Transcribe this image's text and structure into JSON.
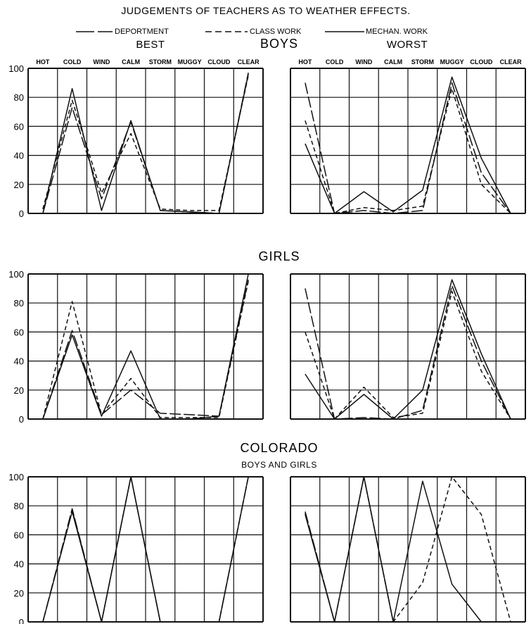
{
  "figure": {
    "title": "JUDGEMENTS OF TEACHERS AS TO WEATHER EFFECTS.",
    "legend": [
      {
        "label": "DEPORTMENT",
        "style": "long-dash"
      },
      {
        "label": "CLASS WORK",
        "style": "short-dash"
      },
      {
        "label": "MECHAN. WORK",
        "style": "solid"
      }
    ],
    "best_label": "BEST",
    "worst_label": "WORST",
    "sections": [
      {
        "title": "BOYS",
        "subtitle": ""
      },
      {
        "title": "GIRLS",
        "subtitle": ""
      },
      {
        "title": "COLORADO",
        "subtitle": "BOYS AND GIRLS"
      }
    ],
    "categories": [
      "HOT",
      "COLD",
      "WIND",
      "CALM",
      "STORM",
      "MUGGY",
      "CLOUD",
      "CLEAR"
    ],
    "yticks": [
      "100",
      "80",
      "60",
      "40",
      "20",
      "0"
    ]
  },
  "chart_data": [
    {
      "type": "line",
      "section": "BOYS",
      "panel": "BEST",
      "categories": [
        "HOT",
        "COLD",
        "WIND",
        "CALM",
        "STORM",
        "MUGGY",
        "CLOUD",
        "CLEAR"
      ],
      "ylim": [
        0,
        100
      ],
      "series": [
        {
          "name": "DEPORTMENT",
          "style": "long-dash",
          "values": [
            0,
            73,
            10,
            63,
            2,
            1,
            0,
            97
          ]
        },
        {
          "name": "CLASS WORK",
          "style": "short-dash",
          "values": [
            3,
            78,
            14,
            55,
            3,
            2,
            2,
            95
          ]
        },
        {
          "name": "MECHAN. WORK",
          "style": "solid",
          "values": [
            0,
            86,
            2,
            64,
            2,
            1,
            0,
            96
          ]
        }
      ]
    },
    {
      "type": "line",
      "section": "BOYS",
      "panel": "WORST",
      "categories": [
        "HOT",
        "COLD",
        "WIND",
        "CALM",
        "STORM",
        "MUGGY",
        "CLOUD",
        "CLEAR"
      ],
      "ylim": [
        0,
        100
      ],
      "series": [
        {
          "name": "DEPORTMENT",
          "style": "long-dash",
          "values": [
            90,
            0,
            2,
            0,
            2,
            90,
            28,
            0
          ]
        },
        {
          "name": "CLASS WORK",
          "style": "short-dash",
          "values": [
            64,
            0,
            4,
            2,
            5,
            86,
            20,
            0
          ]
        },
        {
          "name": "MECHAN. WORK",
          "style": "solid",
          "values": [
            48,
            0,
            15,
            1,
            16,
            94,
            38,
            0
          ]
        }
      ]
    },
    {
      "type": "line",
      "section": "GIRLS",
      "panel": "BEST",
      "categories": [
        "HOT",
        "COLD",
        "WIND",
        "CALM",
        "STORM",
        "MUGGY",
        "CLOUD",
        "CLEAR"
      ],
      "ylim": [
        0,
        100
      ],
      "series": [
        {
          "name": "DEPORTMENT",
          "style": "long-dash",
          "values": [
            0,
            61,
            3,
            20,
            4,
            3,
            2,
            96
          ]
        },
        {
          "name": "CLASS WORK",
          "style": "short-dash",
          "values": [
            0,
            81,
            3,
            28,
            1,
            1,
            1,
            95
          ]
        },
        {
          "name": "MECHAN. WORK",
          "style": "solid",
          "values": [
            0,
            58,
            2,
            47,
            0,
            0,
            2,
            100
          ]
        }
      ]
    },
    {
      "type": "line",
      "section": "GIRLS",
      "panel": "WORST",
      "categories": [
        "HOT",
        "COLD",
        "WIND",
        "CALM",
        "STORM",
        "MUGGY",
        "CLOUD",
        "CLEAR"
      ],
      "ylim": [
        0,
        100
      ],
      "series": [
        {
          "name": "DEPORTMENT",
          "style": "long-dash",
          "values": [
            90,
            0,
            1,
            0,
            6,
            92,
            40,
            0
          ]
        },
        {
          "name": "CLASS WORK",
          "style": "short-dash",
          "values": [
            60,
            0,
            22,
            1,
            4,
            88,
            33,
            0
          ]
        },
        {
          "name": "MECHAN. WORK",
          "style": "solid",
          "values": [
            31,
            0,
            17,
            0,
            20,
            96,
            45,
            0
          ]
        }
      ]
    },
    {
      "type": "line",
      "section": "COLORADO",
      "panel": "BEST",
      "categories": [
        "HOT",
        "COLD",
        "WIND",
        "CALM",
        "STORM",
        "MUGGY",
        "CLOUD",
        "CLEAR"
      ],
      "ylim": [
        0,
        100
      ],
      "series": [
        {
          "name": "DEPORTMENT",
          "style": "long-dash",
          "values": [
            0,
            78,
            0,
            100,
            0,
            null,
            0,
            100
          ]
        },
        {
          "name": "CLASS WORK",
          "style": "short-dash",
          "values": [
            0,
            77,
            0,
            100,
            0,
            null,
            0,
            100
          ]
        },
        {
          "name": "MECHAN. WORK",
          "style": "solid",
          "values": [
            0,
            76,
            0,
            100,
            0,
            null,
            0,
            100
          ]
        }
      ]
    },
    {
      "type": "line",
      "section": "COLORADO",
      "panel": "WORST",
      "categories": [
        "HOT",
        "COLD",
        "WIND",
        "CALM",
        "STORM",
        "MUGGY",
        "CLOUD",
        "CLEAR"
      ],
      "ylim": [
        0,
        100
      ],
      "series": [
        {
          "name": "DEPORTMENT",
          "style": "long-dash",
          "values": [
            76,
            0,
            100,
            0,
            null,
            null,
            null,
            null
          ]
        },
        {
          "name": "CLASS WORK",
          "style": "short-dash",
          "values": [
            75,
            0,
            100,
            0,
            27,
            100,
            74,
            0
          ]
        },
        {
          "name": "MECHAN. WORK",
          "style": "solid",
          "values": [
            74,
            0,
            100,
            0,
            97,
            26,
            0,
            null
          ]
        }
      ]
    }
  ]
}
